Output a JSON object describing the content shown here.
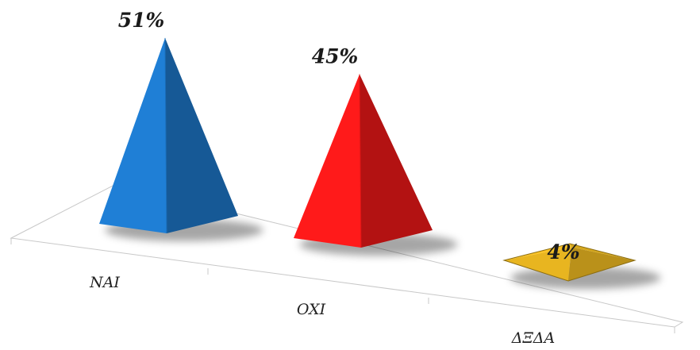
{
  "chart_data": {
    "type": "bar",
    "bar_shape": "pyramid",
    "categories": [
      "NAI",
      "OXI",
      "ΔΞΔΑ"
    ],
    "values": [
      51,
      45,
      4
    ],
    "value_labels": [
      "51%",
      "45%",
      "4%"
    ],
    "ylim": [
      0,
      55
    ],
    "colors": [
      "#1f7fd6",
      "#ff1a1a",
      "#e8b520"
    ],
    "grid": false,
    "legend": "none"
  }
}
